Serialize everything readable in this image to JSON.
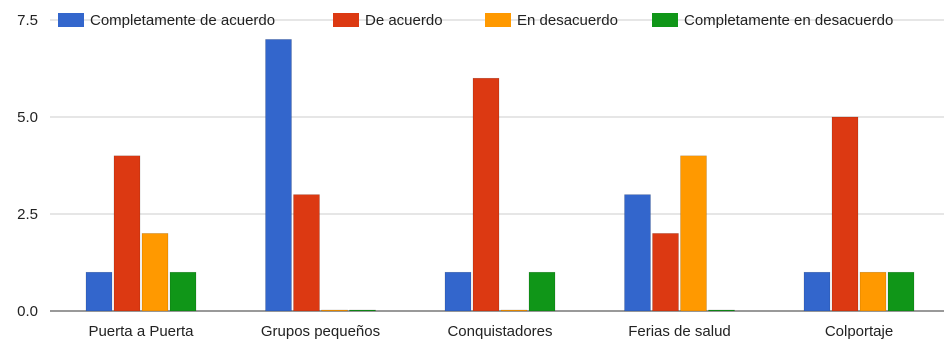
{
  "chart_data": {
    "type": "bar",
    "title": "",
    "xlabel": "",
    "ylabel": "",
    "ylim": [
      0,
      7.5
    ],
    "yticks": [
      "0.0",
      "2.5",
      "5.0",
      "7.5"
    ],
    "ytick_values": [
      0,
      2.5,
      5.0,
      7.5
    ],
    "grid": true,
    "legend_position": "top",
    "categories": [
      "Puerta a Puerta",
      "Grupos pequeños",
      "Conquistadores",
      "Ferias de salud",
      "Colportaje"
    ],
    "series": [
      {
        "name": "Completamente de acuerdo",
        "color": "#3366cc",
        "values": [
          1,
          7,
          1,
          3,
          1
        ]
      },
      {
        "name": "De acuerdo",
        "color": "#dc3912",
        "values": [
          4,
          3,
          6,
          2,
          5
        ]
      },
      {
        "name": "En desacuerdo",
        "color": "#ff9900",
        "values": [
          2,
          0,
          0,
          4,
          1
        ]
      },
      {
        "name": "Completamente en desacuerdo",
        "color": "#109618",
        "values": [
          1,
          0,
          1,
          0,
          1
        ]
      }
    ]
  }
}
